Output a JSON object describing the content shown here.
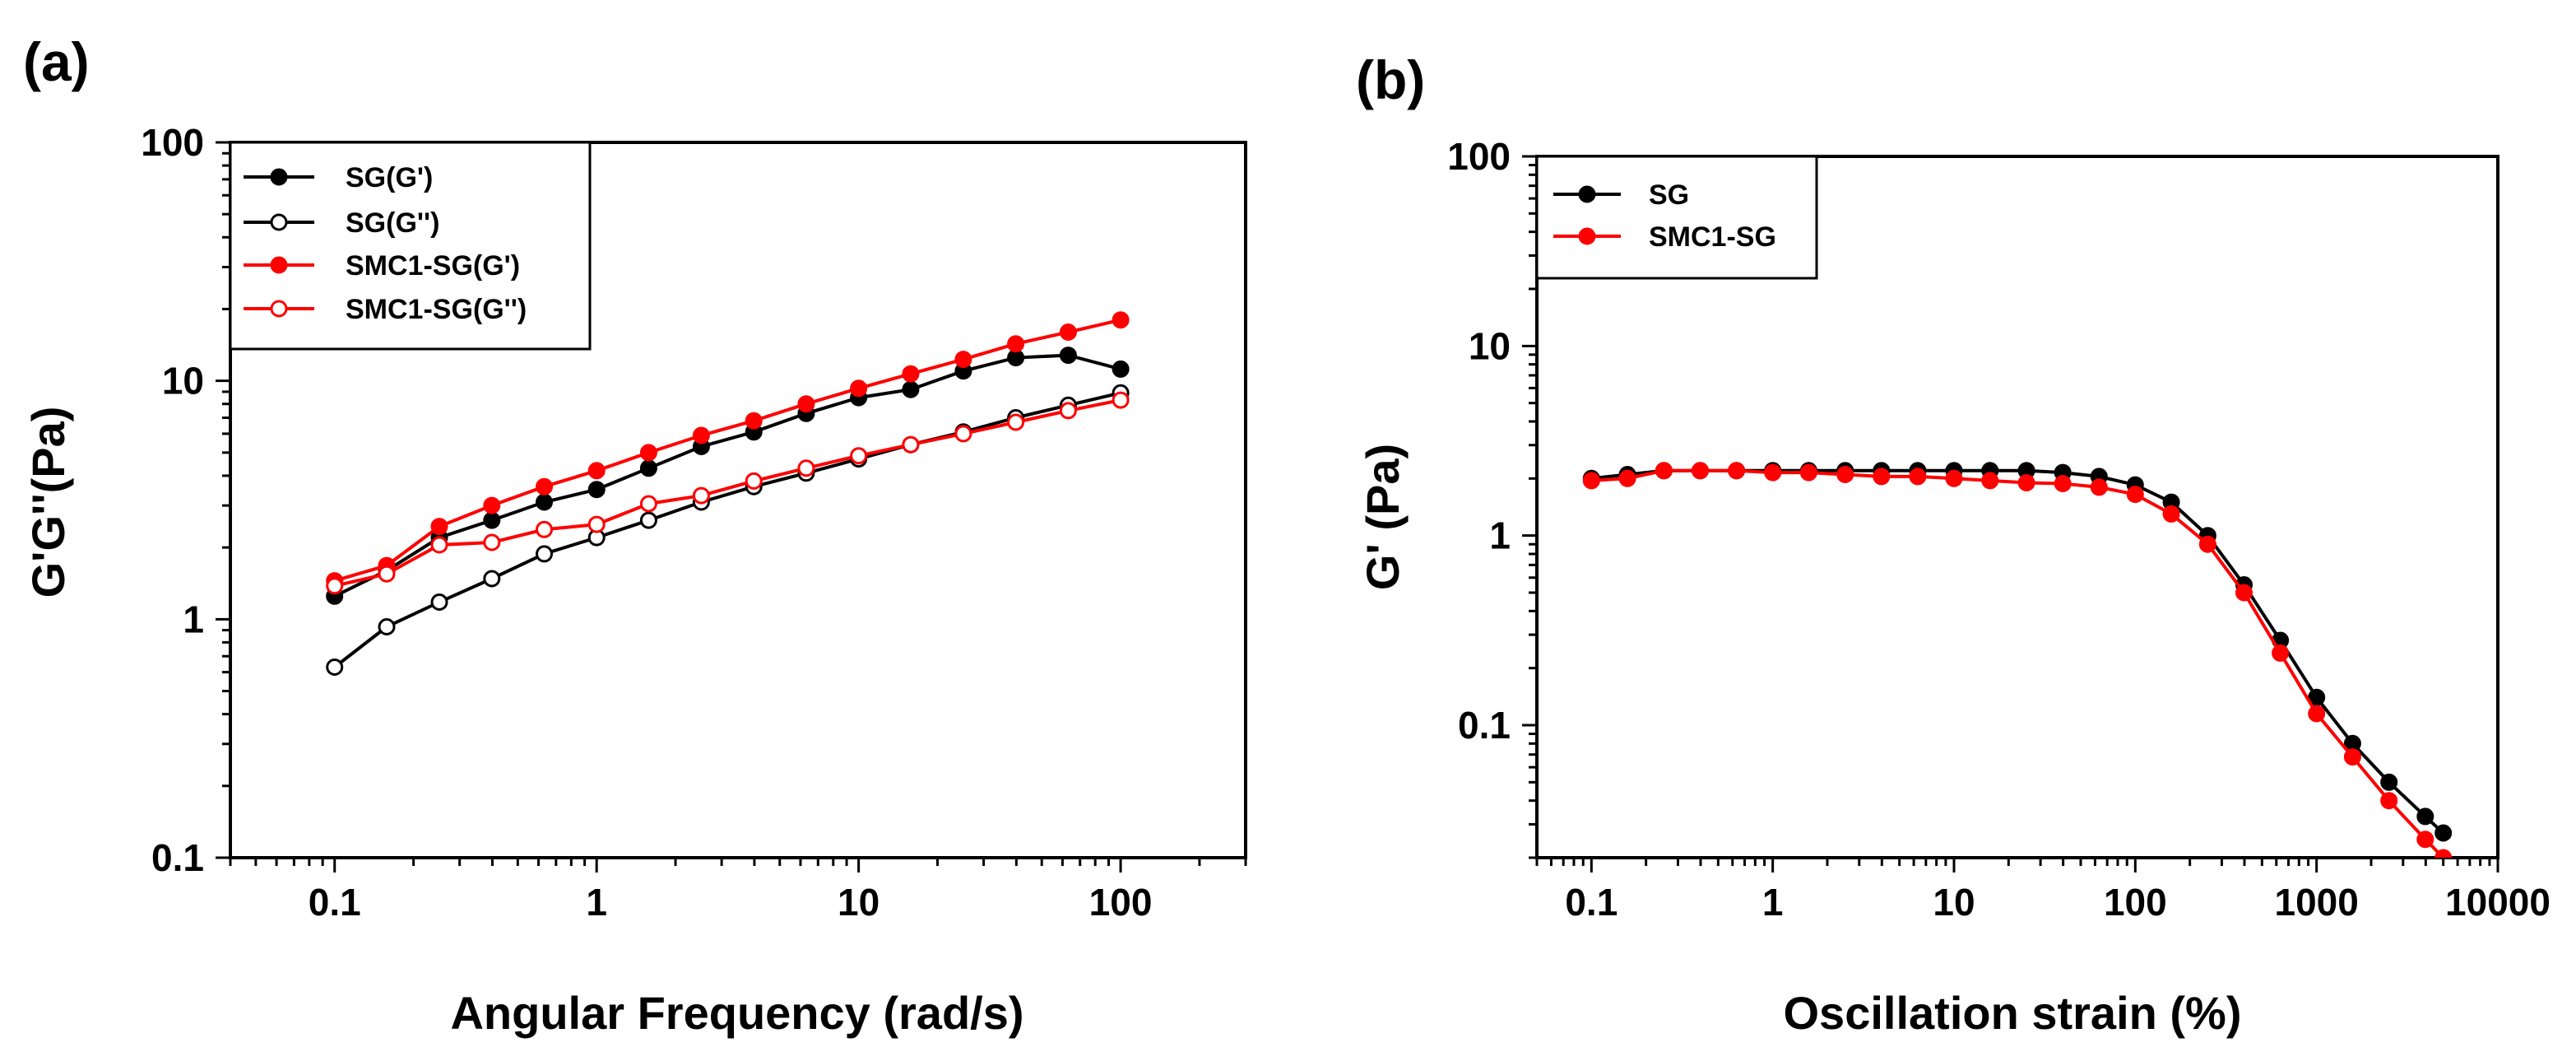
{
  "chart_data": [
    {
      "panel_label": "(a)",
      "type": "line",
      "xscale": "log",
      "yscale": "log",
      "xlabel": "Angular Frequency (rad/s)",
      "ylabel": "G'G''(Pa)",
      "xlim": [
        0.04,
        300
      ],
      "ylim": [
        0.1,
        100
      ],
      "x_ticks": [
        "0.1",
        "1",
        "10",
        "100"
      ],
      "y_ticks": [
        "0.1",
        "1",
        "10",
        "100"
      ],
      "x_tick_values": [
        0.1,
        1,
        10,
        100
      ],
      "y_tick_values": [
        0.1,
        1,
        10,
        100
      ],
      "legend_position": "top-left",
      "x": [
        0.1,
        0.158,
        0.251,
        0.398,
        0.631,
        1,
        1.58,
        2.51,
        3.98,
        6.31,
        10,
        15.8,
        25.1,
        39.8,
        63.1,
        100
      ],
      "series": [
        {
          "name": "SG(G')",
          "color": "#000000",
          "marker": "filled",
          "values": [
            1.25,
            1.6,
            2.2,
            2.6,
            3.1,
            3.5,
            4.3,
            5.3,
            6.1,
            7.3,
            8.5,
            9.2,
            11,
            12.5,
            12.8,
            11.2
          ]
        },
        {
          "name": "SG(G'')",
          "color": "#000000",
          "marker": "open",
          "values": [
            0.63,
            0.93,
            1.18,
            1.48,
            1.88,
            2.2,
            2.6,
            3.1,
            3.6,
            4.1,
            4.7,
            5.4,
            6.1,
            7.0,
            7.9,
            8.9
          ]
        },
        {
          "name": "SMC1-SG(G')",
          "color": "#ff0000",
          "marker": "filled",
          "values": [
            1.45,
            1.68,
            2.45,
            3.0,
            3.6,
            4.2,
            5.0,
            5.9,
            6.8,
            8.0,
            9.3,
            10.7,
            12.3,
            14.3,
            16.0,
            18.0
          ]
        },
        {
          "name": "SMC1-SG(G'')",
          "color": "#ff0000",
          "marker": "open",
          "values": [
            1.38,
            1.55,
            2.05,
            2.1,
            2.38,
            2.5,
            3.05,
            3.3,
            3.8,
            4.3,
            4.85,
            5.4,
            6.0,
            6.7,
            7.5,
            8.3
          ]
        }
      ]
    },
    {
      "panel_label": "(b)",
      "type": "line",
      "xscale": "log",
      "yscale": "log",
      "xlabel": "Oscillation strain (%)",
      "ylabel": "G' (Pa)",
      "xlim": [
        0.05,
        10000
      ],
      "ylim": [
        0.02,
        100
      ],
      "x_ticks": [
        "0.1",
        "1",
        "10",
        "100",
        "1000",
        "10000"
      ],
      "y_ticks": [
        "0.1",
        "1",
        "10",
        "100"
      ],
      "x_tick_values": [
        0.1,
        1,
        10,
        100,
        1000,
        10000
      ],
      "y_tick_values": [
        0.1,
        1,
        10,
        100
      ],
      "legend_position": "top-left",
      "x": [
        0.1,
        0.158,
        0.251,
        0.398,
        0.631,
        1,
        1.58,
        2.51,
        3.98,
        6.31,
        10,
        15.8,
        25.1,
        39.8,
        63.1,
        100,
        158,
        251,
        398,
        631,
        1000,
        1580,
        2510,
        3980,
        5000
      ],
      "series": [
        {
          "name": "SG",
          "color": "#000000",
          "marker": "filled",
          "values": [
            2.0,
            2.1,
            2.2,
            2.2,
            2.2,
            2.2,
            2.2,
            2.2,
            2.2,
            2.2,
            2.2,
            2.2,
            2.2,
            2.15,
            2.05,
            1.85,
            1.5,
            1.0,
            0.55,
            0.28,
            0.14,
            0.08,
            0.05,
            0.033,
            0.027
          ]
        },
        {
          "name": "SMC1-SG",
          "color": "#ff0000",
          "marker": "filled",
          "values": [
            1.95,
            2.0,
            2.2,
            2.2,
            2.2,
            2.15,
            2.15,
            2.1,
            2.05,
            2.05,
            2.0,
            1.95,
            1.9,
            1.88,
            1.8,
            1.65,
            1.3,
            0.9,
            0.5,
            0.24,
            0.115,
            0.068,
            0.04,
            0.025,
            0.02
          ]
        }
      ]
    }
  ]
}
